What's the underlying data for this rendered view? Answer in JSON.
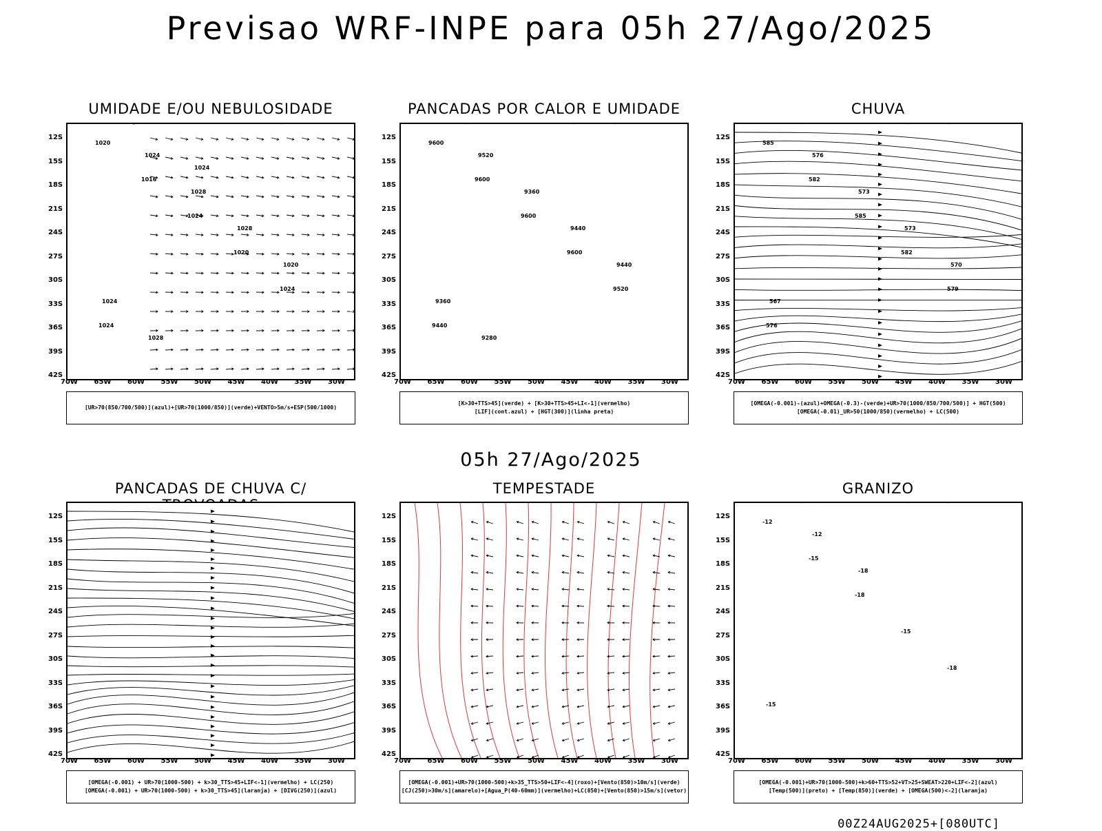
{
  "title": "Previsao WRF-INPE  para 05h 27/Ago/2025",
  "mid_time": "05h 27/Ago/2025",
  "footer": "00Z24AUG2025+[080UTC]",
  "lat_labels": [
    "12S",
    "15S",
    "18S",
    "21S",
    "24S",
    "27S",
    "30S",
    "33S",
    "36S",
    "39S",
    "42S"
  ],
  "lon_labels": [
    "70W",
    "65W",
    "60W",
    "55W",
    "50W",
    "45W",
    "40W",
    "35W",
    "30W"
  ],
  "panels": [
    {
      "title": "UMIDADE E/OU NEBULOSIDADE",
      "legend": [
        "[UR>70(850/700/500)](azul)+[UR>70(1000/850)](verde)+VENTO>5m/s+ESP(500/1000)"
      ],
      "contour_labels": [
        "1020",
        "1016",
        "1024",
        "1020",
        "1024",
        "1024",
        "1024",
        "1028",
        "1028",
        "1020",
        "1024",
        "1028",
        "1024"
      ]
    },
    {
      "title": "PANCADAS POR CALOR E UMIDADE",
      "legend": [
        "[K>30+TTS>45](verde) + [K>30+TTS>45+LI<-1](vermelho)",
        "[LIF](cont.azul) + [HGT(300)](linha preta)"
      ],
      "contour_labels": [
        "9600",
        "9600",
        "9600",
        "9600",
        "9520",
        "9440",
        "9520",
        "9360",
        "9440",
        "9440",
        "9360",
        "9280"
      ]
    },
    {
      "title": "CHUVA",
      "legend": [
        "[OMEGA(-0.001)-(azul)+OMEGA(-0.3)-(verde)+UR>70(1000/850/700/500)] + HGT(500)",
        "[OMEGA(-0.01)_UR>50(1000/850)(vermelho) + LC(500)"
      ],
      "contour_labels": [
        "585",
        "582",
        "585",
        "582",
        "579",
        "576",
        "576",
        "573",
        "573",
        "570",
        "567"
      ]
    },
    {
      "title": "PANCADAS DE CHUVA C/ TROVOADAS",
      "legend": [
        "[OMEGA(-0.001) + UR>70(1000-500) + k>30_TTS>45+LIF<-1](vermelho) + LC(250)",
        "[OMEGA(-0.001) + UR>70(1000-500) + k>30_TTS>45](laranja) + [DIVG(250)](azul)"
      ],
      "contour_labels": []
    },
    {
      "title": "TEMPESTADE",
      "legend": [
        "[OMEGA(-0.001)+UR>70(1000-500)+k>35_TTS>50+LIF<-4](roxo)+[Vento(850)>10m/s](verde)",
        "[CJ(250)>30m/s](amarelo)+[Agua_P(40-60mm)](vermelho)+LC(850)+[Vento(850)>15m/s](vetor)"
      ],
      "contour_labels": []
    },
    {
      "title": "GRANIZO",
      "legend": [
        "[OMEGA(-0.001)+UR>70(1000-500)+k>60+TTS>52+VT>25+SWEAT>220+LIF<-2](azul)",
        "[Temp(500)](preto) + [Temp(850)](verde) + [OMEGA(500)<-2](laranja)"
      ],
      "contour_labels": [
        "-12",
        "-15",
        "-18",
        "-15",
        "-18",
        "-15",
        "-12",
        "-18"
      ]
    }
  ],
  "colors": {
    "humidity_blue": "#8f8fe6",
    "humidity_green": "#22dd22",
    "dashed_red": "#ee3333",
    "storm_dark": "#1f4a40",
    "storm_red": "#ff4444",
    "lif_blue": "#2244ee",
    "jet_yellow": "#e6dd33",
    "wind_green": "#22bb22",
    "thunder_orange": "#ee8822"
  }
}
